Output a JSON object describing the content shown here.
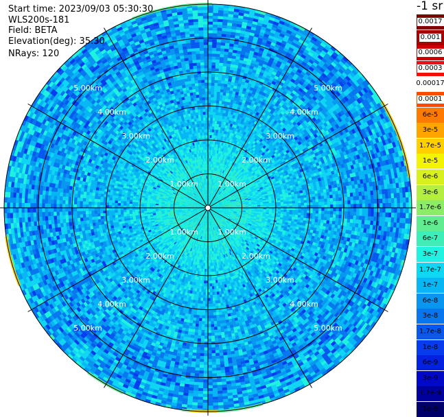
{
  "info": {
    "start_time": "Start time: 2023/09/03 05:30:30",
    "instrument": "WLS200s-181",
    "field": "Field: BETA",
    "elevation": "Elevation(deg): 35.30",
    "nrays": "NRays: 120"
  },
  "colorbar": {
    "unit_label": "-1 sr",
    "entries": [
      {
        "label": "0.0017",
        "color": "#800000",
        "style": "white"
      },
      {
        "label": "0.001",
        "color": "#a80000",
        "style": "white"
      },
      {
        "label": "0.0006",
        "color": "#cc0000",
        "style": "white"
      },
      {
        "label": "0.0003",
        "color": "#ee1010",
        "style": "white"
      },
      {
        "label": "0.00017",
        "color": "#ffffff",
        "style": "plain"
      },
      {
        "label": "0.0001",
        "color": "#ff4a00",
        "style": "white"
      },
      {
        "label": "6e-5",
        "color": "#ff7a00",
        "style": "plain"
      },
      {
        "label": "3e-5",
        "color": "#ffa400",
        "style": "plain"
      },
      {
        "label": "1.7e-5",
        "color": "#ffd000",
        "style": "plain"
      },
      {
        "label": "1e-5",
        "color": "#f4f400",
        "style": "plain"
      },
      {
        "label": "6e-6",
        "color": "#d8f020",
        "style": "plain"
      },
      {
        "label": "3e-6",
        "color": "#b4ee40",
        "style": "plain"
      },
      {
        "label": "1.7e-6",
        "color": "#8cec66",
        "style": "plain"
      },
      {
        "label": "1e-6",
        "color": "#62ec90",
        "style": "plain"
      },
      {
        "label": "6e-7",
        "color": "#3eeeb8",
        "style": "plain"
      },
      {
        "label": "3e-7",
        "color": "#20f2e0",
        "style": "plain"
      },
      {
        "label": "1.7e-7",
        "color": "#10d6f4",
        "style": "plain"
      },
      {
        "label": "1e-7",
        "color": "#08b6f4",
        "style": "plain"
      },
      {
        "label": "6e-8",
        "color": "#0896f0",
        "style": "plain"
      },
      {
        "label": "3e-8",
        "color": "#0876ee",
        "style": "plain"
      },
      {
        "label": "1.7e-8",
        "color": "#0858ee",
        "style": "plain"
      },
      {
        "label": "1e-8",
        "color": "#063cee",
        "style": "plain"
      },
      {
        "label": "6e-9",
        "color": "#0420e0",
        "style": "plain"
      },
      {
        "label": "3e-9",
        "color": "#0208c8",
        "style": "plain"
      },
      {
        "label": "1.7e-9",
        "color": "#00009c",
        "style": "plain"
      },
      {
        "label": "1e-9",
        "color": "#00006a",
        "style": "plain"
      }
    ]
  },
  "chart_data": {
    "type": "heatmap",
    "projection": "polar-ppi",
    "field": "BETA",
    "nrays": 120,
    "elevation_deg": 35.3,
    "range_rings_km": [
      1.0,
      2.0,
      3.0,
      4.0,
      5.0
    ],
    "ring_labels": [
      "1.00km",
      "2.00km",
      "3.00km",
      "4.00km",
      "5.00km"
    ],
    "max_range_km": 6.0,
    "spokes_deg": [
      0,
      30,
      60,
      90,
      120,
      150,
      180,
      210,
      240,
      270,
      300,
      330
    ],
    "grid": true,
    "radial_profile": {
      "range_km": [
        0.0,
        1.0,
        2.0,
        3.0,
        4.0,
        5.0,
        6.0
      ],
      "approx_value_sr_inv": [
        "3e-7",
        "3e-7",
        "1.7e-7",
        "1e-7",
        "1e-7",
        "6e-8",
        "1e-7"
      ]
    },
    "edge_highlight": {
      "range_km": 6.0,
      "approx_value_sr_inv": [
        "1e-6",
        "1.7e-5"
      ],
      "note": "sparse higher values at outer rim"
    }
  }
}
